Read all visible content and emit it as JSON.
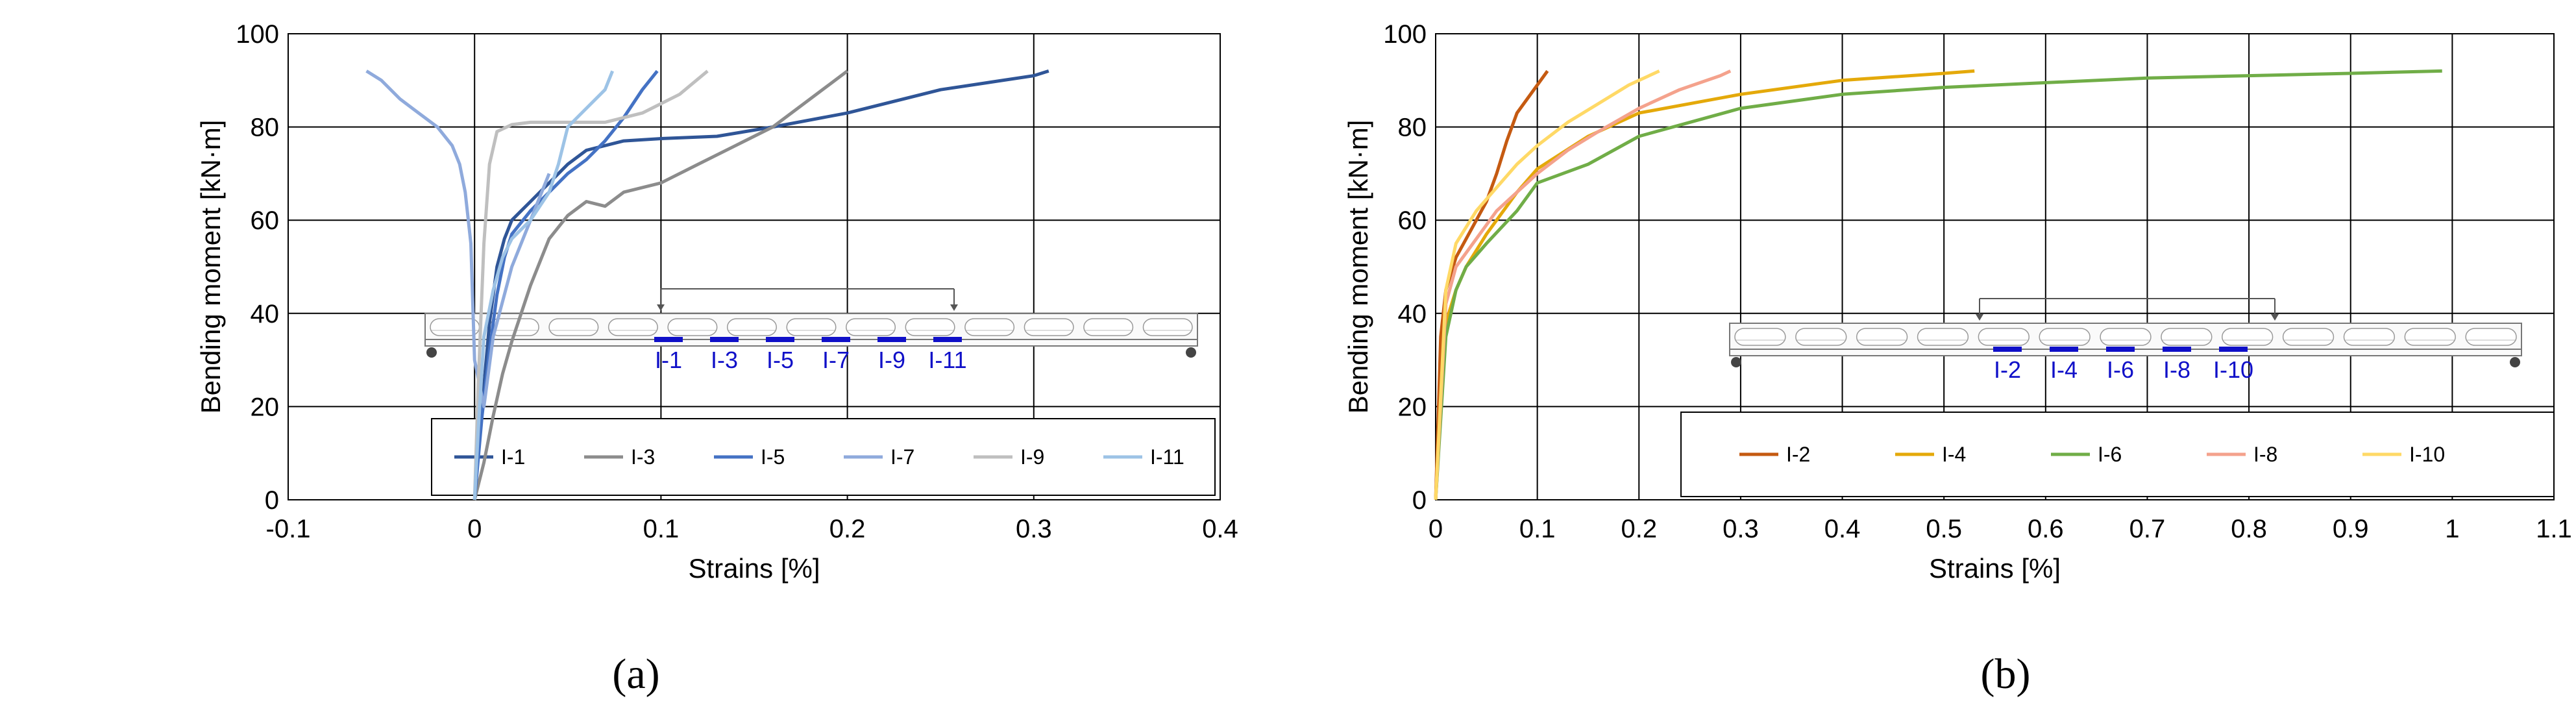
{
  "chart_data": [
    {
      "type": "line",
      "panel_label": "(a)",
      "xlabel": "Strains [%]",
      "ylabel": "Bending moment [kN·m]",
      "xlim": [
        -0.1,
        0.4
      ],
      "ylim": [
        0,
        100
      ],
      "xticks": [
        "-0.1",
        "0",
        "0.1",
        "0.2",
        "0.3",
        "0.4"
      ],
      "yticks": [
        "0",
        "20",
        "40",
        "60",
        "80",
        "100"
      ],
      "grid": true,
      "legend_position": "bottom",
      "series": [
        {
          "name": "I-1",
          "color": "#2f5597",
          "x": [
            0,
            0.004,
            0.008,
            0.012,
            0.016,
            0.02,
            0.025,
            0.03,
            0.035,
            0.04,
            0.05,
            0.06,
            0.08,
            0.1,
            0.13,
            0.16,
            0.2,
            0.25,
            0.3,
            0.308
          ],
          "y": [
            0,
            20,
            38,
            50,
            56,
            60,
            62,
            64,
            66,
            68,
            72,
            75,
            77,
            77.5,
            78,
            80,
            83,
            88,
            91,
            92
          ]
        },
        {
          "name": "I-3",
          "color": "#8c8c8c",
          "x": [
            0,
            0.005,
            0.01,
            0.015,
            0.02,
            0.025,
            0.03,
            0.035,
            0.04,
            0.05,
            0.06,
            0.07,
            0.08,
            0.1,
            0.12,
            0.14,
            0.16,
            0.18,
            0.19,
            0.2
          ],
          "y": [
            0,
            8,
            18,
            27,
            34,
            40,
            46,
            51,
            56,
            61,
            64,
            63,
            66,
            68,
            72,
            76,
            80,
            86,
            89,
            92
          ]
        },
        {
          "name": "I-5",
          "color": "#4472c4",
          "x": [
            0,
            0.004,
            0.008,
            0.012,
            0.016,
            0.02,
            0.03,
            0.04,
            0.05,
            0.06,
            0.07,
            0.08,
            0.09,
            0.098
          ],
          "y": [
            0,
            18,
            32,
            44,
            52,
            57,
            62,
            66,
            70,
            73,
            77,
            82,
            88,
            92
          ]
        },
        {
          "name": "I-7",
          "color": "#8faadc",
          "x": [
            -0.058,
            -0.05,
            -0.04,
            -0.03,
            -0.02,
            -0.012,
            -0.008,
            -0.005,
            -0.002,
            0,
            0.005,
            0.01,
            0.02,
            0.03,
            0.04
          ],
          "y": [
            92,
            90,
            86,
            83,
            80,
            76,
            72,
            66,
            55,
            30,
            20,
            35,
            50,
            60,
            70
          ]
        },
        {
          "name": "I-9",
          "color": "#bfbfbf",
          "x": [
            0,
            0.002,
            0.005,
            0.008,
            0.012,
            0.02,
            0.03,
            0.05,
            0.07,
            0.09,
            0.11,
            0.125
          ],
          "y": [
            0,
            25,
            55,
            72,
            79,
            80.5,
            81,
            81,
            81,
            83,
            87,
            92
          ]
        },
        {
          "name": "I-11",
          "color": "#9dc3e6",
          "x": [
            0,
            0.002,
            0.005,
            0.01,
            0.015,
            0.02,
            0.03,
            0.04,
            0.045,
            0.05,
            0.06,
            0.07,
            0.074
          ],
          "y": [
            0,
            15,
            35,
            45,
            52,
            56,
            60,
            66,
            72,
            80,
            84,
            88,
            92
          ]
        }
      ],
      "inset": {
        "gauges": [
          "I-1",
          "I-3",
          "I-5",
          "I-7",
          "I-9",
          "I-11"
        ]
      }
    },
    {
      "type": "line",
      "panel_label": "(b)",
      "xlabel": "Strains [%]",
      "ylabel": "Bending moment [kN·m]",
      "xlim": [
        0,
        1.1
      ],
      "ylim": [
        0,
        100
      ],
      "xticks": [
        "0",
        "0.1",
        "0.2",
        "0.3",
        "0.4",
        "0.5",
        "0.6",
        "0.7",
        "0.8",
        "0.9",
        "1",
        "1.1"
      ],
      "yticks": [
        "0",
        "20",
        "40",
        "60",
        "80",
        "100"
      ],
      "grid": true,
      "legend_position": "bottom",
      "series": [
        {
          "name": "I-2",
          "color": "#c55a11",
          "x": [
            0,
            0.005,
            0.01,
            0.02,
            0.03,
            0.04,
            0.05,
            0.06,
            0.07,
            0.08,
            0.09,
            0.1,
            0.11
          ],
          "y": [
            0,
            35,
            45,
            52,
            56,
            60,
            64,
            70,
            77,
            83,
            86,
            89,
            92
          ]
        },
        {
          "name": "I-4",
          "color": "#e4a90a",
          "x": [
            0,
            0.01,
            0.02,
            0.03,
            0.05,
            0.08,
            0.1,
            0.15,
            0.2,
            0.3,
            0.4,
            0.5,
            0.53
          ],
          "y": [
            0,
            38,
            45,
            50,
            57,
            66,
            71,
            78,
            83,
            87,
            90,
            91.5,
            92
          ]
        },
        {
          "name": "I-6",
          "color": "#70ad47",
          "x": [
            0,
            0.01,
            0.02,
            0.03,
            0.05,
            0.08,
            0.1,
            0.15,
            0.2,
            0.3,
            0.4,
            0.5,
            0.6,
            0.7,
            0.8,
            0.9,
            0.99
          ],
          "y": [
            0,
            35,
            45,
            50,
            55,
            62,
            68,
            72,
            78,
            84,
            87,
            88.5,
            89.5,
            90.5,
            91,
            91.5,
            92
          ]
        },
        {
          "name": "I-8",
          "color": "#f4a28c",
          "x": [
            0,
            0.01,
            0.02,
            0.04,
            0.06,
            0.08,
            0.1,
            0.13,
            0.16,
            0.2,
            0.24,
            0.28,
            0.29
          ],
          "y": [
            0,
            42,
            50,
            56,
            62,
            66,
            70,
            75,
            79,
            84,
            88,
            91,
            92
          ]
        },
        {
          "name": "I-10",
          "color": "#ffd966",
          "x": [
            0,
            0.01,
            0.02,
            0.04,
            0.06,
            0.08,
            0.1,
            0.13,
            0.16,
            0.19,
            0.22
          ],
          "y": [
            0,
            45,
            55,
            62,
            67,
            72,
            76,
            81,
            85,
            89,
            92
          ]
        }
      ],
      "inset": {
        "gauges": [
          "I-2",
          "I-4",
          "I-6",
          "I-8",
          "I-10"
        ]
      }
    }
  ]
}
